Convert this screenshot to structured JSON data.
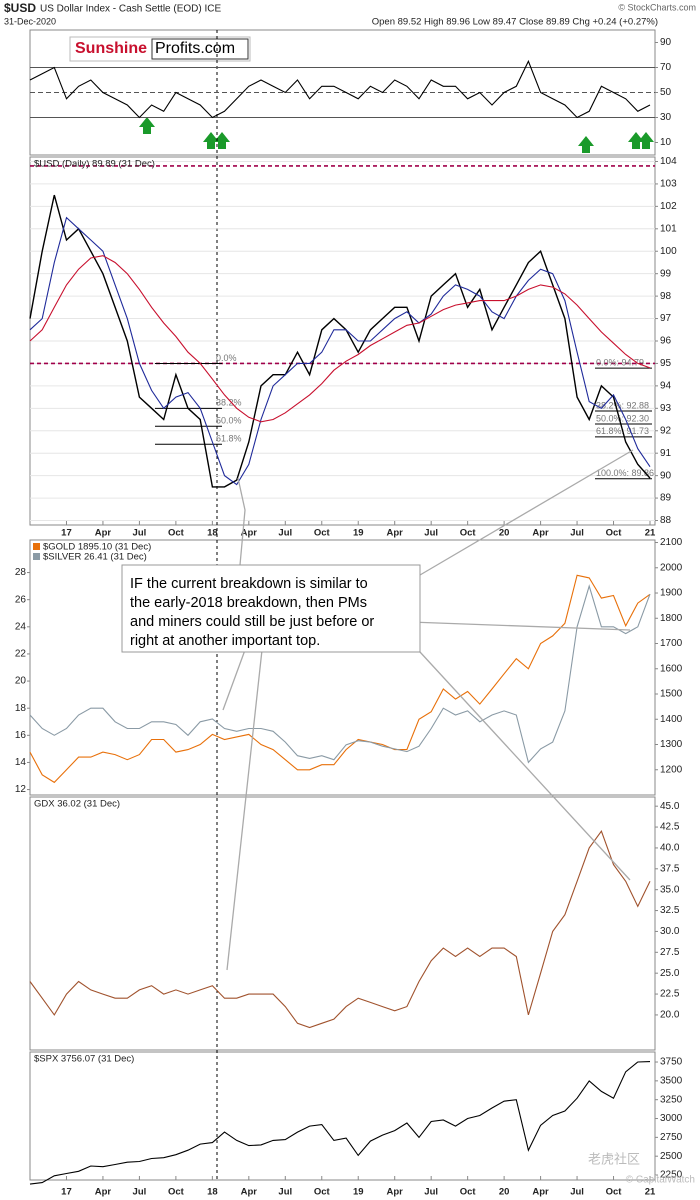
{
  "header": {
    "symbol": "$USD",
    "name": "US Dollar Index - Cash Settle (EOD) ICE",
    "date": "31-Dec-2020",
    "quote": "Open 89.52 High 89.96 Low 89.47 Close 89.89 Chg +0.24 (+0.27%)",
    "source": "© StockCharts.com"
  },
  "logo": [
    "Sunshine",
    "Profits.com"
  ],
  "annotation": {
    "lines": [
      "IF the current breakdown is similar to",
      "the early-2018 breakdown, then PMs",
      "and miners could still be just before or",
      "right at another important top."
    ]
  },
  "watermark": [
    "老虎社区",
    "© CapitalWatch"
  ],
  "chart_data": [
    {
      "type": "line",
      "ylim": [
        0,
        100
      ],
      "yticks": [
        10,
        30,
        50,
        70,
        90
      ],
      "levels": [
        30,
        50,
        70
      ],
      "level_color": "#555",
      "series": [
        {
          "color": "#000000",
          "values": [
            60,
            65,
            70,
            45,
            55,
            60,
            50,
            45,
            40,
            30,
            40,
            35,
            50,
            45,
            40,
            30,
            35,
            45,
            55,
            60,
            55,
            50,
            60,
            45,
            55,
            55,
            50,
            45,
            55,
            50,
            60,
            55,
            45,
            60,
            55,
            55,
            45,
            50,
            40,
            50,
            55,
            75,
            50,
            45,
            40,
            30,
            35,
            55,
            50,
            45,
            35,
            40
          ]
        }
      ]
    },
    {
      "type": "line",
      "title": "$USD (Daily) 89.89 (31 Dec)",
      "ylim": [
        87.8,
        104.2
      ],
      "yticks": [
        88,
        89,
        90,
        91,
        92,
        93,
        94,
        95,
        96,
        97,
        98,
        99,
        100,
        101,
        102,
        103,
        104
      ],
      "grid": true,
      "categories": [
        null,
        null,
        null,
        "17",
        null,
        null,
        "Apr",
        null,
        null,
        "Jul",
        null,
        null,
        "Oct",
        null,
        null,
        "18",
        null,
        null,
        "Apr",
        null,
        null,
        "Jul",
        null,
        null,
        "Oct",
        null,
        null,
        "19",
        null,
        null,
        "Apr",
        null,
        null,
        "Jul",
        null,
        null,
        "Oct",
        null,
        null,
        "20",
        null,
        null,
        "Apr",
        null,
        null,
        "Jul",
        null,
        null,
        "Oct",
        null,
        null,
        "21"
      ],
      "levels": [
        103.8,
        95.0
      ],
      "level_color": "#a0004a",
      "fib_2018": [
        {
          "label": "0.0%",
          "value": 95.0
        },
        {
          "label": "38.2%",
          "value": 93.0
        },
        {
          "label": "50.0%",
          "value": 92.2
        },
        {
          "label": "61.8%",
          "value": 91.4
        }
      ],
      "fib_2020": [
        {
          "label": "0.0%: 94.79",
          "value": 94.79
        },
        {
          "label": "38.2%: 92.88",
          "value": 92.88
        },
        {
          "label": "50.0%: 92.30",
          "value": 92.3
        },
        {
          "label": "61.8%: 91.73",
          "value": 91.73
        },
        {
          "label": "100.0%: 89.86",
          "value": 89.86
        }
      ],
      "series": [
        {
          "color": "#000000",
          "values": [
            97,
            100,
            102.5,
            100.5,
            101,
            100,
            99,
            97.5,
            96,
            93.5,
            93,
            92.5,
            94.5,
            93,
            92.5,
            89.5,
            89.5,
            89.8,
            91.5,
            94,
            94.5,
            94.5,
            95.5,
            94.5,
            96.5,
            97,
            96.5,
            95.5,
            96.5,
            97,
            97.5,
            97.5,
            96,
            98,
            98.5,
            99,
            97.5,
            98.3,
            96.5,
            97.5,
            98.5,
            99.5,
            100,
            98.5,
            97,
            93.5,
            92.5,
            94,
            93.5,
            91.5,
            90.5,
            89.89
          ]
        },
        {
          "color": "#1f2a9a",
          "values": [
            96.5,
            97,
            99.5,
            101.5,
            101,
            100.5,
            100,
            98.5,
            97,
            95,
            93.8,
            93,
            93.5,
            93.7,
            93,
            91.5,
            90,
            89.6,
            90.5,
            92.5,
            94,
            94.5,
            95,
            95,
            95.5,
            96.5,
            96.5,
            96,
            96,
            96.5,
            97,
            97.3,
            96.8,
            97.2,
            98,
            98.5,
            98.3,
            98,
            97.3,
            97,
            98,
            98.7,
            99.2,
            99,
            97.8,
            95.5,
            93.3,
            93,
            93.6,
            92.5,
            91.2,
            90.4
          ]
        },
        {
          "color": "#c8102e",
          "values": [
            96,
            96.5,
            97.5,
            98.5,
            99.2,
            99.7,
            99.8,
            99.5,
            99,
            98.3,
            97.5,
            96.8,
            96.2,
            95.5,
            95,
            94.3,
            93.6,
            93,
            92.6,
            92.4,
            92.5,
            92.8,
            93.2,
            93.6,
            94.1,
            94.7,
            95.1,
            95.4,
            95.8,
            96.1,
            96.4,
            96.7,
            96.8,
            97.1,
            97.4,
            97.6,
            97.7,
            97.8,
            97.8,
            97.8,
            98,
            98.3,
            98.5,
            98.4,
            98.1,
            97.6,
            97,
            96.4,
            95.9,
            95.4,
            95,
            94.8
          ]
        }
      ]
    },
    {
      "type": "line",
      "ylim": [
        11.6,
        30.4
      ],
      "yticks": [
        12,
        14,
        16,
        18,
        20,
        22,
        24,
        26,
        28
      ],
      "y2lim": [
        1100,
        2110
      ],
      "y2ticks": [
        1200,
        1300,
        1400,
        1500,
        1600,
        1700,
        1800,
        1900,
        2000,
        2100
      ],
      "series": [
        {
          "name": "$GOLD 1895.10 (31 Dec)",
          "color": "#e8700a",
          "axis": "y2",
          "values": [
            1270,
            1180,
            1150,
            1200,
            1250,
            1250,
            1270,
            1260,
            1240,
            1260,
            1320,
            1320,
            1270,
            1280,
            1300,
            1340,
            1320,
            1330,
            1340,
            1300,
            1280,
            1240,
            1200,
            1200,
            1220,
            1220,
            1280,
            1320,
            1310,
            1300,
            1280,
            1280,
            1400,
            1430,
            1520,
            1480,
            1510,
            1460,
            1520,
            1580,
            1640,
            1600,
            1700,
            1730,
            1780,
            1970,
            1960,
            1880,
            1890,
            1770,
            1860,
            1895.1
          ]
        },
        {
          "name": "$SILVER 26.41 (31 Dec)",
          "color": "#8a9aa5",
          "values": [
            17.5,
            16.5,
            16,
            16.5,
            17.5,
            18,
            18,
            17,
            16.5,
            16.5,
            17,
            17,
            16.8,
            16,
            17,
            17.2,
            16.5,
            16.3,
            16.5,
            16.5,
            16.3,
            15.5,
            14.5,
            14.3,
            14.5,
            14.2,
            15.3,
            15.6,
            15.5,
            15.2,
            15,
            14.8,
            15.2,
            16.5,
            18,
            17.5,
            17.8,
            17,
            17.5,
            17.8,
            17.5,
            14,
            15,
            15.5,
            17.8,
            24,
            27,
            24,
            24,
            23.5,
            24,
            26.41
          ]
        }
      ]
    },
    {
      "type": "line",
      "title": "GDX 36.02 (31 Dec)",
      "ylim": [
        15.8,
        46.1
      ],
      "yticks": [
        {
          "value": 20,
          "label": "20.0"
        },
        {
          "value": 22.5,
          "label": "22.5"
        },
        {
          "value": 25,
          "label": "25.0"
        },
        {
          "value": 27.5,
          "label": "27.5"
        },
        {
          "value": 30,
          "label": "30.0"
        },
        {
          "value": 32.5,
          "label": "32.5"
        },
        {
          "value": 35,
          "label": "35.0"
        },
        {
          "value": 37.5,
          "label": "37.5"
        },
        {
          "value": 40,
          "label": "40.0"
        },
        {
          "value": 42.5,
          "label": "42.5"
        },
        {
          "value": 45,
          "label": "45.0"
        }
      ],
      "series": [
        {
          "color": "#a0522d",
          "values": [
            24,
            22,
            20,
            22.5,
            24,
            23,
            22.5,
            22,
            22,
            23,
            23.5,
            22.5,
            23,
            22.5,
            23,
            23.5,
            22,
            22,
            22.5,
            22.5,
            22.5,
            21,
            19,
            18.5,
            19,
            19.5,
            21,
            22,
            21.5,
            21,
            20.5,
            21,
            24,
            26.5,
            28,
            27,
            28,
            27,
            28,
            28,
            27,
            20,
            25,
            30,
            32,
            36,
            40,
            42,
            38,
            36,
            33,
            36.02
          ]
        }
      ]
    },
    {
      "type": "line",
      "title": "$SPX 3756.07 (31 Dec)",
      "ylim": [
        2184,
        3883
      ],
      "yticks": [
        2250,
        2500,
        2750,
        3000,
        3250,
        3500,
        3750
      ],
      "categories": [
        null,
        null,
        null,
        "17",
        null,
        null,
        "Apr",
        null,
        null,
        "Jul",
        null,
        null,
        "Oct",
        null,
        null,
        "18",
        null,
        null,
        "Apr",
        null,
        null,
        "Jul",
        null,
        null,
        "Oct",
        null,
        null,
        "19",
        null,
        null,
        "Apr",
        null,
        null,
        "Jul",
        null,
        null,
        "Oct",
        null,
        null,
        "20",
        null,
        null,
        "Apr",
        null,
        null,
        "Jul",
        null,
        null,
        "Oct",
        null,
        null,
        "21"
      ],
      "series": [
        {
          "color": "#000000",
          "values": [
            2130,
            2150,
            2240,
            2270,
            2300,
            2370,
            2360,
            2390,
            2420,
            2430,
            2470,
            2480,
            2520,
            2580,
            2660,
            2680,
            2820,
            2710,
            2640,
            2650,
            2710,
            2720,
            2820,
            2900,
            2920,
            2710,
            2740,
            2510,
            2700,
            2780,
            2840,
            2940,
            2750,
            2960,
            2980,
            2900,
            3000,
            3040,
            3140,
            3230,
            3250,
            2580,
            2910,
            3040,
            3100,
            3270,
            3500,
            3360,
            3270,
            3620,
            3750,
            3756.07
          ]
        }
      ]
    }
  ]
}
